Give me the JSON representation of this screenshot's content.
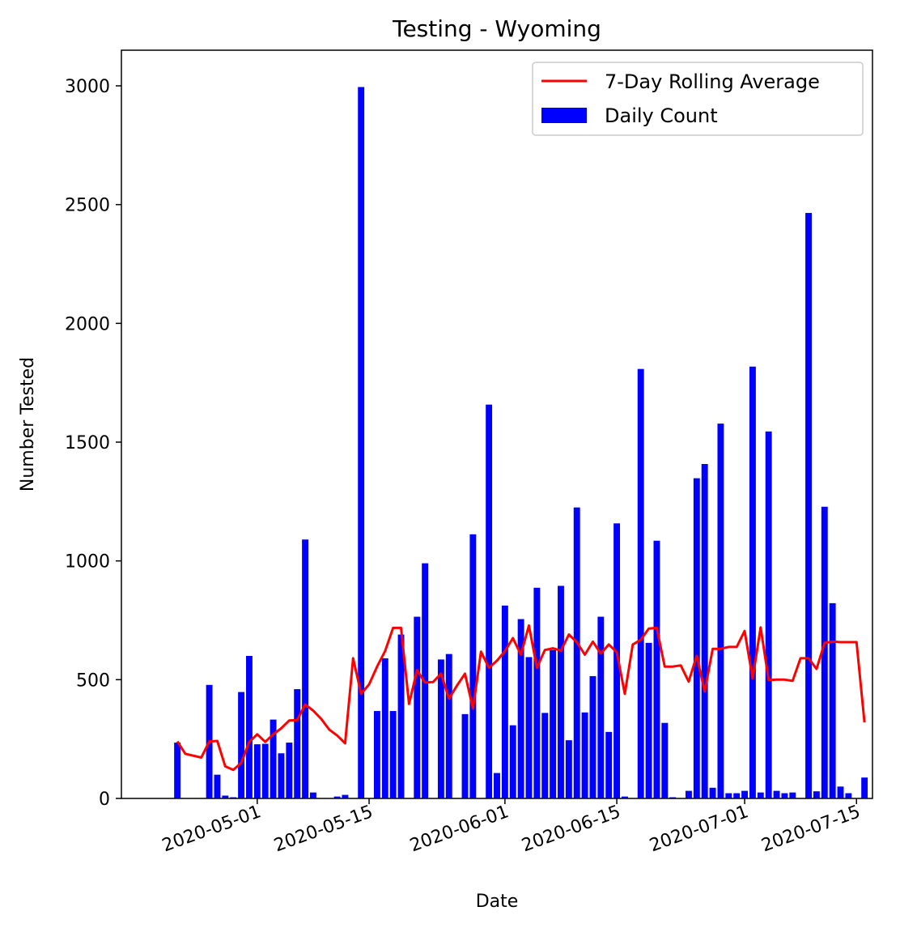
{
  "chart_data": {
    "type": "bar",
    "title": "Testing - Wyoming",
    "xlabel": "Date",
    "ylabel": "Number Tested",
    "ylim": [
      0,
      3150
    ],
    "xlim": [
      "2020-04-14",
      "2020-07-17"
    ],
    "x_ticks": [
      "2020-05-01",
      "2020-05-15",
      "2020-06-01",
      "2020-06-15",
      "2020-07-01",
      "2020-07-15"
    ],
    "y_ticks": [
      0,
      500,
      1000,
      1500,
      2000,
      2500,
      3000
    ],
    "grid": false,
    "legend": "top-right",
    "series": [
      {
        "name": "Daily Count",
        "kind": "bar",
        "color": "#0000ff",
        "points": [
          [
            "2020-04-21",
            235
          ],
          [
            "2020-04-25",
            478
          ],
          [
            "2020-04-26",
            100
          ],
          [
            "2020-04-27",
            12
          ],
          [
            "2020-04-28",
            5
          ],
          [
            "2020-04-29",
            448
          ],
          [
            "2020-04-30",
            600
          ],
          [
            "2020-05-01",
            228
          ],
          [
            "2020-05-02",
            230
          ],
          [
            "2020-05-03",
            332
          ],
          [
            "2020-05-04",
            190
          ],
          [
            "2020-05-05",
            235
          ],
          [
            "2020-05-06",
            460
          ],
          [
            "2020-05-07",
            1090
          ],
          [
            "2020-05-08",
            25
          ],
          [
            "2020-05-10",
            0
          ],
          [
            "2020-05-11",
            8
          ],
          [
            "2020-05-12",
            15
          ],
          [
            "2020-05-14",
            2995
          ],
          [
            "2020-05-15",
            0
          ],
          [
            "2020-05-16",
            368
          ],
          [
            "2020-05-17",
            590
          ],
          [
            "2020-05-18",
            368
          ],
          [
            "2020-05-19",
            690
          ],
          [
            "2020-05-20",
            0
          ],
          [
            "2020-05-21",
            765
          ],
          [
            "2020-05-22",
            990
          ],
          [
            "2020-05-24",
            585
          ],
          [
            "2020-05-25",
            608
          ],
          [
            "2020-05-27",
            355
          ],
          [
            "2020-05-28",
            1112
          ],
          [
            "2020-05-29",
            0
          ],
          [
            "2020-05-30",
            1658
          ],
          [
            "2020-05-31",
            107
          ],
          [
            "2020-06-01",
            812
          ],
          [
            "2020-06-02",
            308
          ],
          [
            "2020-06-03",
            755
          ],
          [
            "2020-06-04",
            595
          ],
          [
            "2020-06-05",
            887
          ],
          [
            "2020-06-06",
            360
          ],
          [
            "2020-06-07",
            625
          ],
          [
            "2020-06-08",
            895
          ],
          [
            "2020-06-09",
            245
          ],
          [
            "2020-06-10",
            1225
          ],
          [
            "2020-06-11",
            362
          ],
          [
            "2020-06-12",
            515
          ],
          [
            "2020-06-13",
            765
          ],
          [
            "2020-06-14",
            280
          ],
          [
            "2020-06-15",
            1158
          ],
          [
            "2020-06-16",
            8
          ],
          [
            "2020-06-18",
            1808
          ],
          [
            "2020-06-19",
            655
          ],
          [
            "2020-06-20",
            1085
          ],
          [
            "2020-06-21",
            318
          ],
          [
            "2020-06-22",
            5
          ],
          [
            "2020-06-24",
            32
          ],
          [
            "2020-06-25",
            1348
          ],
          [
            "2020-06-26",
            1408
          ],
          [
            "2020-06-27",
            45
          ],
          [
            "2020-06-28",
            1578
          ],
          [
            "2020-06-29",
            22
          ],
          [
            "2020-06-30",
            22
          ],
          [
            "2020-07-01",
            32
          ],
          [
            "2020-07-02",
            1818
          ],
          [
            "2020-07-03",
            25
          ],
          [
            "2020-07-04",
            1545
          ],
          [
            "2020-07-05",
            32
          ],
          [
            "2020-07-06",
            22
          ],
          [
            "2020-07-07",
            25
          ],
          [
            "2020-07-09",
            2465
          ],
          [
            "2020-07-10",
            30
          ],
          [
            "2020-07-11",
            1228
          ],
          [
            "2020-07-12",
            822
          ],
          [
            "2020-07-13",
            50
          ],
          [
            "2020-07-14",
            22
          ],
          [
            "2020-07-16",
            88
          ]
        ]
      },
      {
        "name": "7-Day Rolling Average",
        "kind": "line",
        "color": "#ff0000",
        "points": [
          [
            "2020-04-21",
            240
          ],
          [
            "2020-04-22",
            188
          ],
          [
            "2020-04-24",
            172
          ],
          [
            "2020-04-25",
            240
          ],
          [
            "2020-04-26",
            242
          ],
          [
            "2020-04-27",
            135
          ],
          [
            "2020-04-28",
            120
          ],
          [
            "2020-04-29",
            150
          ],
          [
            "2020-04-30",
            238
          ],
          [
            "2020-05-01",
            270
          ],
          [
            "2020-05-02",
            238
          ],
          [
            "2020-05-03",
            270
          ],
          [
            "2020-05-04",
            295
          ],
          [
            "2020-05-05",
            328
          ],
          [
            "2020-05-06",
            330
          ],
          [
            "2020-05-07",
            395
          ],
          [
            "2020-05-08",
            370
          ],
          [
            "2020-05-09",
            335
          ],
          [
            "2020-05-10",
            290
          ],
          [
            "2020-05-11",
            265
          ],
          [
            "2020-05-12",
            232
          ],
          [
            "2020-05-13",
            590
          ],
          [
            "2020-05-14",
            440
          ],
          [
            "2020-05-15",
            480
          ],
          [
            "2020-05-16",
            555
          ],
          [
            "2020-05-17",
            620
          ],
          [
            "2020-05-18",
            718
          ],
          [
            "2020-05-19",
            718
          ],
          [
            "2020-05-20",
            398
          ],
          [
            "2020-05-21",
            540
          ],
          [
            "2020-05-22",
            488
          ],
          [
            "2020-05-23",
            490
          ],
          [
            "2020-05-24",
            525
          ],
          [
            "2020-05-25",
            420
          ],
          [
            "2020-05-26",
            475
          ],
          [
            "2020-05-27",
            525
          ],
          [
            "2020-05-28",
            378
          ],
          [
            "2020-05-29",
            618
          ],
          [
            "2020-05-30",
            550
          ],
          [
            "2020-05-31",
            580
          ],
          [
            "2020-06-01",
            620
          ],
          [
            "2020-06-02",
            675
          ],
          [
            "2020-06-03",
            605
          ],
          [
            "2020-06-04",
            728
          ],
          [
            "2020-06-05",
            550
          ],
          [
            "2020-06-06",
            625
          ],
          [
            "2020-06-07",
            632
          ],
          [
            "2020-06-08",
            622
          ],
          [
            "2020-06-09",
            690
          ],
          [
            "2020-06-10",
            658
          ],
          [
            "2020-06-11",
            605
          ],
          [
            "2020-06-12",
            660
          ],
          [
            "2020-06-13",
            610
          ],
          [
            "2020-06-14",
            648
          ],
          [
            "2020-06-15",
            615
          ],
          [
            "2020-06-16",
            440
          ],
          [
            "2020-06-17",
            648
          ],
          [
            "2020-06-18",
            668
          ],
          [
            "2020-06-19",
            715
          ],
          [
            "2020-06-20",
            718
          ],
          [
            "2020-06-21",
            555
          ],
          [
            "2020-06-22",
            555
          ],
          [
            "2020-06-23",
            560
          ],
          [
            "2020-06-24",
            492
          ],
          [
            "2020-06-25",
            600
          ],
          [
            "2020-06-26",
            450
          ],
          [
            "2020-06-27",
            630
          ],
          [
            "2020-06-28",
            630
          ],
          [
            "2020-06-29",
            638
          ],
          [
            "2020-06-30",
            638
          ],
          [
            "2020-07-01",
            705
          ],
          [
            "2020-07-02",
            505
          ],
          [
            "2020-07-03",
            720
          ],
          [
            "2020-07-04",
            498
          ],
          [
            "2020-07-05",
            500
          ],
          [
            "2020-07-06",
            500
          ],
          [
            "2020-07-07",
            495
          ],
          [
            "2020-07-08",
            590
          ],
          [
            "2020-07-09",
            590
          ],
          [
            "2020-07-10",
            545
          ],
          [
            "2020-07-11",
            655
          ],
          [
            "2020-07-12",
            660
          ],
          [
            "2020-07-13",
            658
          ],
          [
            "2020-07-15",
            658
          ],
          [
            "2020-07-16",
            320
          ]
        ]
      }
    ]
  }
}
